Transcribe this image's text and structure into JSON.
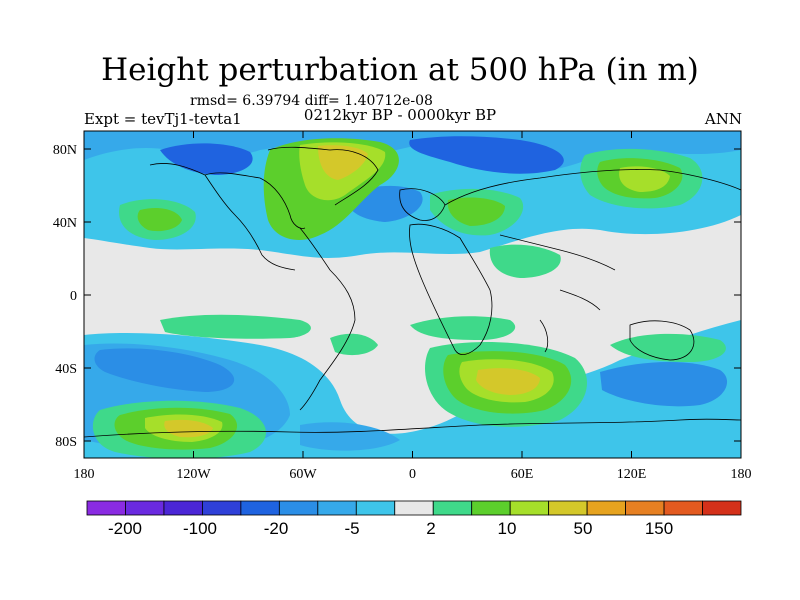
{
  "title": "Height perturbation at 500 hPa (in m)",
  "stats": "rmsd= 6.39794 diff= 1.40712e-08",
  "period": "0212kyr BP - 0000kyr BP",
  "experiment": "Expt = tevTj1-tevta1",
  "season": "ANN",
  "x_ticks": [
    "180",
    "120W",
    "60W",
    "0",
    "60E",
    "120E",
    "180"
  ],
  "y_ticks": [
    "80N",
    "40N",
    "0",
    "40S",
    "80S"
  ],
  "colorbar": {
    "colors": [
      "#8a2be2",
      "#6a2ae0",
      "#4b26d6",
      "#2f40d8",
      "#1f63e0",
      "#2b8ee6",
      "#36a9ea",
      "#3ec5ea",
      "#e8e8e8",
      "#3fd98a",
      "#5ccf2c",
      "#a6df2a",
      "#d4c82a",
      "#e6a31f",
      "#e68022",
      "#e35a20",
      "#d4311a"
    ],
    "labels": [
      "-200",
      "-100",
      "-20",
      "-5",
      "2",
      "10",
      "50",
      "150"
    ]
  }
}
